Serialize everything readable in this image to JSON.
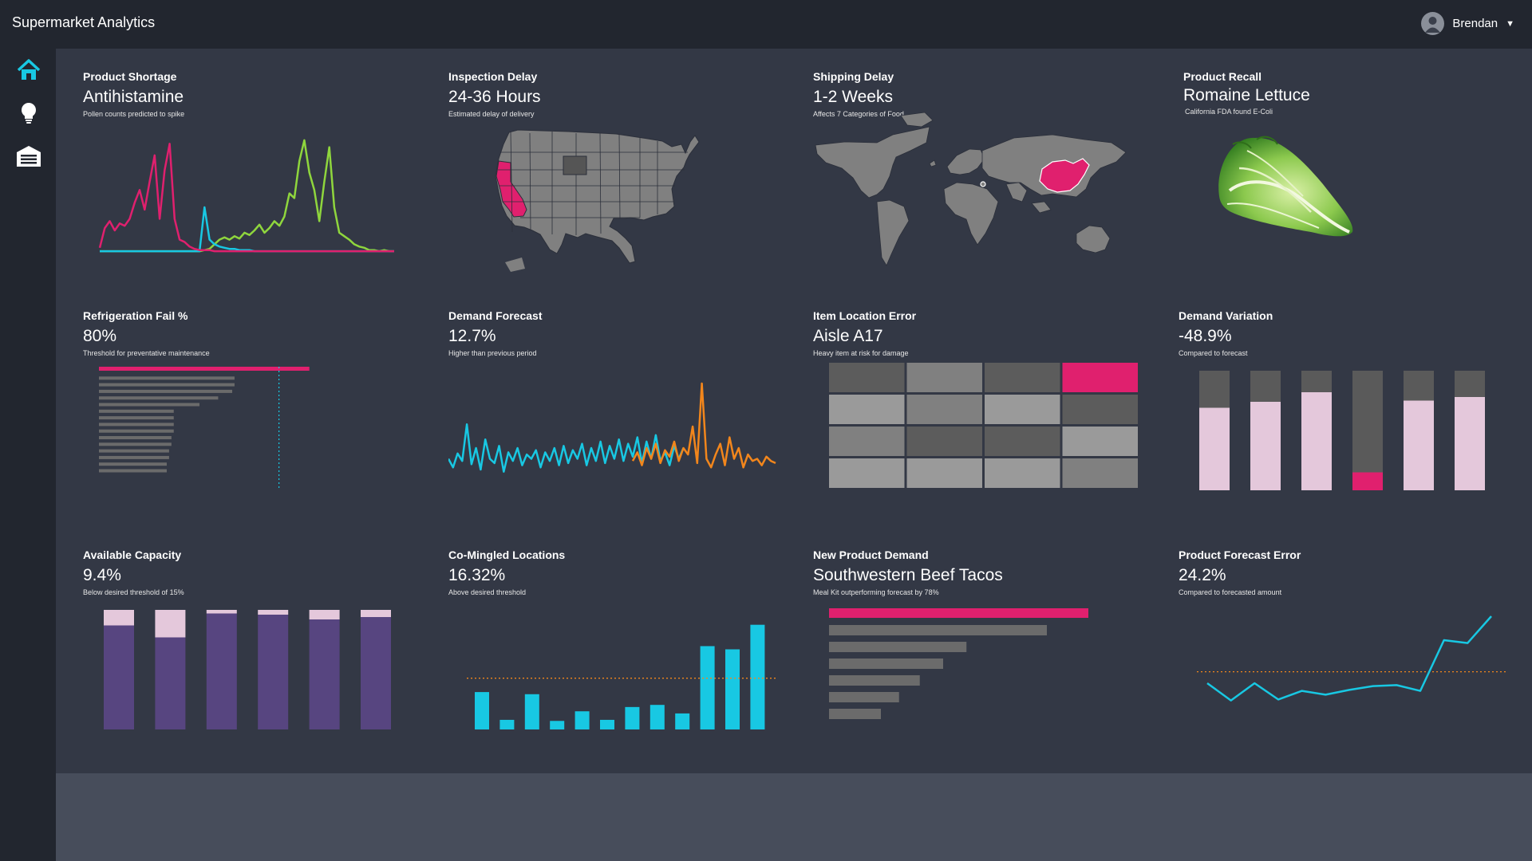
{
  "app": {
    "title": "Supermarket Analytics",
    "user": "Brendan"
  },
  "nav": [
    {
      "name": "home",
      "icon": "home-icon",
      "active": true
    },
    {
      "name": "insights",
      "icon": "lightbulb-icon",
      "active": false
    },
    {
      "name": "warehouse",
      "icon": "warehouse-icon",
      "active": false
    }
  ],
  "colors": {
    "pink": "#e0206e",
    "green": "#8fd63d",
    "cyan": "#18c8e3",
    "orange": "#f2861c",
    "purple": "#574580",
    "lilac": "#e4c8db",
    "gray": "#5a5a5a",
    "lightgray": "#999999"
  },
  "cards": [
    {
      "title": "Product Shortage",
      "value": "Antihistamine",
      "sub": "Pollen counts predicted to spike"
    },
    {
      "title": "Inspection Delay",
      "value": "24-36 Hours",
      "sub": "Estimated delay of delivery"
    },
    {
      "title": "Shipping Delay",
      "value": "1-2 Weeks",
      "sub": "Affects 7 Categories of Food"
    },
    {
      "title": "Product Recall",
      "value": "Romaine Lettuce",
      "sub": "California FDA found E-Coli"
    },
    {
      "title": "Refrigeration Fail %",
      "value": "80%",
      "sub": "Threshold for preventative maintenance"
    },
    {
      "title": "Demand Forecast",
      "value": "12.7%",
      "sub": "Higher than previous period"
    },
    {
      "title": "Item Location Error",
      "value": "Aisle A17",
      "sub": "Heavy item at risk for damage"
    },
    {
      "title": "Demand Variation",
      "value": "-48.9%",
      "sub": "Compared to forecast"
    },
    {
      "title": "Available Capacity",
      "value": "9.4%",
      "sub": "Below desired threshold of 15%"
    },
    {
      "title": "Co-Mingled Locations",
      "value": "16.32%",
      "sub": "Above desired threshold"
    },
    {
      "title": "New Product Demand",
      "value": "Southwestern Beef Tacos",
      "sub": "Meal Kit outperforming forecast by 78%"
    },
    {
      "title": "Product Forecast Error",
      "value": "24.2%",
      "sub": "Compared to forecasted amount"
    }
  ],
  "chart_data": [
    {
      "id": "product-shortage",
      "type": "line",
      "ylim": [
        0,
        100
      ],
      "series": [
        {
          "name": "pink",
          "values": [
            5,
            22,
            28,
            20,
            26,
            24,
            30,
            44,
            55,
            38,
            62,
            85,
            30,
            72,
            95,
            30,
            12,
            10,
            6,
            4,
            3,
            3,
            3,
            2,
            2,
            2,
            2,
            2,
            2,
            2,
            2,
            2,
            2,
            2,
            2,
            2,
            2,
            2,
            2,
            2,
            2,
            2,
            2,
            2,
            2,
            2,
            2,
            2,
            2,
            2,
            2,
            2,
            2,
            2,
            2,
            2,
            2,
            2,
            2,
            2
          ]
        },
        {
          "name": "green",
          "values": [
            2,
            2,
            2,
            2,
            2,
            2,
            2,
            2,
            2,
            2,
            2,
            2,
            2,
            2,
            2,
            2,
            2,
            2,
            2,
            2,
            2,
            3,
            4,
            8,
            12,
            14,
            12,
            15,
            13,
            18,
            16,
            20,
            25,
            18,
            22,
            28,
            24,
            32,
            52,
            48,
            80,
            98,
            70,
            55,
            28,
            62,
            92,
            40,
            18,
            15,
            12,
            8,
            6,
            5,
            3,
            3,
            2,
            3,
            2,
            2
          ]
        },
        {
          "name": "cyan",
          "values": [
            2,
            2,
            2,
            2,
            2,
            2,
            2,
            2,
            2,
            2,
            2,
            2,
            2,
            2,
            2,
            2,
            2,
            2,
            2,
            2,
            2,
            40,
            12,
            8,
            6,
            5,
            4,
            4,
            3,
            3,
            3,
            2,
            2,
            2,
            2,
            2,
            2,
            2,
            2,
            2,
            2,
            2,
            2,
            2,
            2,
            2,
            2,
            2,
            2,
            2,
            2,
            2,
            2,
            2,
            2,
            2,
            2,
            2,
            2,
            2
          ]
        }
      ]
    },
    {
      "id": "refrigeration-fail",
      "type": "bar",
      "orientation": "horizontal",
      "xlim": [
        0,
        100
      ],
      "threshold": 77,
      "values": [
        90,
        58,
        58,
        57,
        51,
        43,
        32,
        32,
        32,
        32,
        31,
        31,
        30,
        30,
        29,
        29
      ]
    },
    {
      "id": "demand-forecast",
      "type": "line",
      "ylim": [
        0,
        100
      ],
      "series": [
        {
          "name": "cyan",
          "values": [
            30,
            22,
            35,
            28,
            62,
            25,
            40,
            20,
            48,
            30,
            26,
            42,
            18,
            36,
            28,
            40,
            24,
            34,
            30,
            38,
            22,
            36,
            28,
            40,
            24,
            42,
            26,
            38,
            30,
            44,
            24,
            40,
            28,
            46,
            26,
            42,
            30,
            48,
            28,
            44,
            32,
            50,
            26,
            46,
            30,
            52,
            28,
            36,
            24,
            42,
            30,
            40
          ]
        },
        {
          "name": "orange",
          "values": [
            28,
            36,
            24,
            40,
            30,
            44,
            26,
            38,
            32,
            46,
            28,
            40,
            34,
            60,
            26,
            100,
            30,
            22,
            34,
            44,
            24,
            50,
            30,
            40,
            22,
            34,
            28,
            30,
            24,
            32,
            28,
            26
          ]
        }
      ]
    },
    {
      "id": "item-location-error",
      "type": "heatmap",
      "rows": 4,
      "cols": 4,
      "highlight": [
        0,
        3
      ],
      "values": [
        [
          2,
          1,
          2,
          3
        ],
        [
          0,
          1,
          0,
          2
        ],
        [
          1,
          2,
          2,
          0
        ],
        [
          0,
          0,
          0,
          1
        ]
      ]
    },
    {
      "id": "demand-variation",
      "type": "bar",
      "stacked": true,
      "ylim": [
        0,
        100
      ],
      "values": [
        69,
        74,
        82,
        15,
        75,
        78
      ],
      "highlight_index": 3
    },
    {
      "id": "available-capacity",
      "type": "bar",
      "stacked": true,
      "ylim": [
        0,
        100
      ],
      "values": [
        87,
        77,
        97,
        96,
        92,
        94
      ]
    },
    {
      "id": "co-mingled-locations",
      "type": "bar",
      "ylim": [
        0,
        100
      ],
      "threshold": 48,
      "values": [
        35,
        9,
        33,
        8,
        17,
        9,
        21,
        23,
        15,
        78,
        75,
        98
      ]
    },
    {
      "id": "new-product-demand",
      "type": "bar",
      "orientation": "horizontal",
      "xlim": [
        0,
        100
      ],
      "values": [
        100,
        84,
        53,
        44,
        35,
        27,
        20
      ]
    },
    {
      "id": "product-forecast-error",
      "type": "line",
      "ylim": [
        0,
        100
      ],
      "threshold": 42,
      "values": [
        30,
        12,
        30,
        13,
        22,
        18,
        23,
        27,
        28,
        22,
        75,
        72,
        100
      ]
    }
  ]
}
